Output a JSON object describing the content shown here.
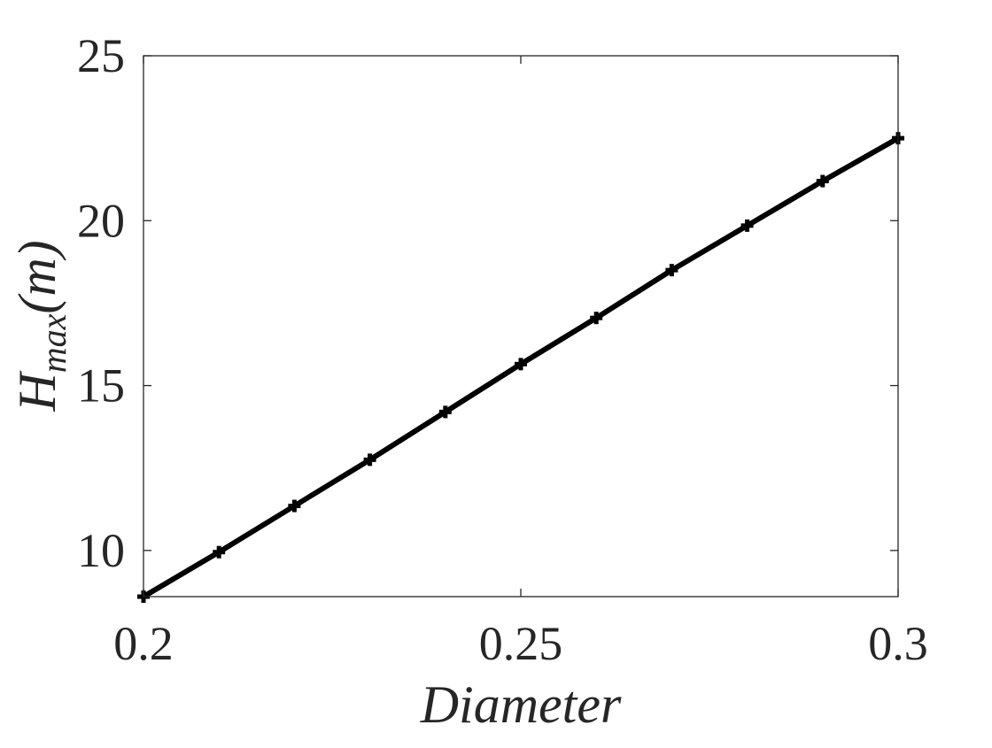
{
  "chart_data": {
    "type": "line",
    "title": "",
    "xlabel": "Diameter",
    "ylabel_main": "H",
    "ylabel_sub": "max",
    "ylabel_unit": "(m)",
    "xlim": [
      0.2,
      0.3
    ],
    "ylim": [
      8.6,
      25
    ],
    "xticks": [
      0.2,
      0.25,
      0.3
    ],
    "xtick_labels": [
      "0.2",
      "0.25",
      "0.3"
    ],
    "yticks": [
      10,
      15,
      20,
      25
    ],
    "ytick_labels": [
      "10",
      "15",
      "20",
      "25"
    ],
    "grid": false,
    "box": true,
    "marker": "plus",
    "line_color": "#000000",
    "series": [
      {
        "x": [
          0.2,
          0.21,
          0.22,
          0.23,
          0.24,
          0.25,
          0.26,
          0.27,
          0.28,
          0.29,
          0.3
        ],
        "values": [
          8.6,
          9.95,
          11.35,
          12.75,
          14.2,
          15.65,
          17.05,
          18.5,
          19.85,
          21.2,
          22.5
        ]
      }
    ]
  }
}
